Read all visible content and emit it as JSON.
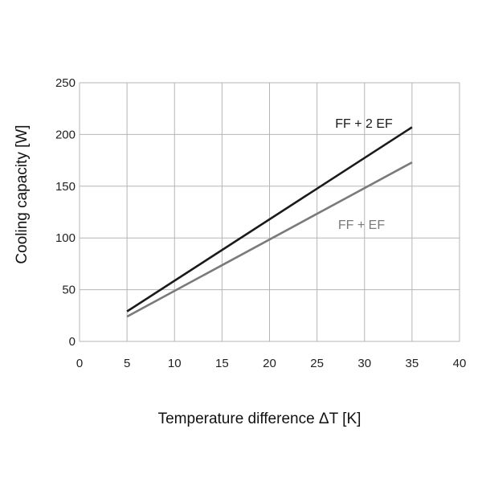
{
  "chart_data": {
    "type": "line",
    "xlabel": "Temperature difference ΔT [K]",
    "ylabel": "Cooling capacity  [W]",
    "xlim": [
      0,
      40
    ],
    "ylim": [
      0,
      250
    ],
    "x_ticks": [
      "0",
      "5",
      "10",
      "15",
      "20",
      "25",
      "30",
      "35",
      "40"
    ],
    "y_ticks": [
      "0",
      "50",
      "100",
      "150",
      "200",
      "250"
    ],
    "grid": true,
    "series": [
      {
        "name": "FF + 2 EF",
        "color": "#1a1a1a",
        "x": [
          5,
          35
        ],
        "y": [
          29,
          207
        ]
      },
      {
        "name": "FF + EF",
        "color": "#7a7a7a",
        "x": [
          5,
          35
        ],
        "y": [
          24,
          173
        ]
      }
    ]
  }
}
